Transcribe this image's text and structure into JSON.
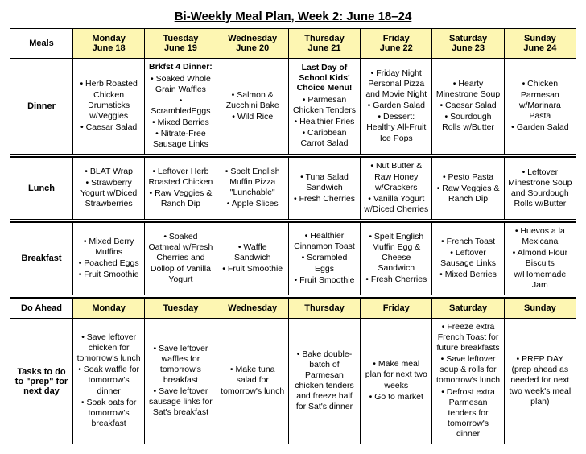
{
  "title": "Bi-Weekly Meal Plan, Week 2: June 18–24",
  "colors": {
    "header_bg": "#fdf6b2",
    "border": "#000000",
    "text": "#000000"
  },
  "columns": {
    "meals_label": "Meals",
    "doahead_label": "Do Ahead",
    "tasks_label": "Tasks to do to \"prep\" for next day",
    "days": [
      {
        "name": "Monday",
        "date": "June 18"
      },
      {
        "name": "Tuesday",
        "date": "June 19"
      },
      {
        "name": "Wednesday",
        "date": "June 20"
      },
      {
        "name": "Thursday",
        "date": "June 21"
      },
      {
        "name": "Friday",
        "date": "June 22"
      },
      {
        "name": "Saturday",
        "date": "June 23"
      },
      {
        "name": "Sunday",
        "date": "June 24"
      }
    ]
  },
  "rows": {
    "dinner": {
      "label": "Dinner",
      "cells": [
        {
          "items": [
            "Herb Roasted Chicken Drumsticks w/Veggies",
            "Caesar Salad"
          ]
        },
        {
          "title": "Brkfst 4 Dinner:",
          "items": [
            "Soaked Whole Grain Waffles",
            "ScrambledEggs",
            "Mixed Berries",
            "Nitrate-Free Sausage Links"
          ]
        },
        {
          "items": [
            "Salmon & Zucchini Bake",
            "Wild Rice"
          ]
        },
        {
          "title": "Last Day of School Kids' Choice Menu!",
          "items": [
            "Parmesan Chicken Tenders",
            "Healthier Fries",
            "Caribbean Carrot Salad"
          ]
        },
        {
          "items": [
            "Friday Night Personal Pizza and Movie Night",
            "Garden Salad",
            "Dessert: Healthy All-Fruit Ice Pops"
          ]
        },
        {
          "items": [
            "Hearty Minestrone Soup",
            "Caesar Salad",
            "Sourdough Rolls w/Butter"
          ]
        },
        {
          "items": [
            "Chicken Parmesan w/Marinara Pasta",
            "Garden Salad"
          ]
        }
      ]
    },
    "lunch": {
      "label": "Lunch",
      "cells": [
        {
          "items": [
            "BLAT Wrap",
            "Strawberry Yogurt w/Diced Strawberries"
          ]
        },
        {
          "items": [
            "Leftover Herb Roasted Chicken",
            "Raw Veggies & Ranch Dip"
          ]
        },
        {
          "items": [
            "Spelt English Muffin Pizza \"Lunchable\"",
            "Apple Slices"
          ]
        },
        {
          "items": [
            "Tuna Salad Sandwich",
            "Fresh Cherries"
          ]
        },
        {
          "items": [
            "Nut Butter & Raw Honey w/Crackers",
            "Vanilla Yogurt w/Diced Cherries"
          ]
        },
        {
          "items": [
            "Pesto Pasta",
            "Raw Veggies & Ranch Dip"
          ]
        },
        {
          "items": [
            "Leftover Minestrone Soup and Sourdough Rolls w/Butter"
          ]
        }
      ]
    },
    "breakfast": {
      "label": "Breakfast",
      "cells": [
        {
          "items": [
            "Mixed Berry Muffins",
            "Poached Eggs",
            "Fruit Smoothie"
          ]
        },
        {
          "items": [
            "Soaked Oatmeal w/Fresh Cherries  and Dollop of Vanilla Yogurt"
          ]
        },
        {
          "items": [
            "Waffle Sandwich",
            "Fruit Smoothie"
          ]
        },
        {
          "items": [
            "Healthier Cinnamon Toast",
            "Scrambled Eggs",
            "Fruit Smoothie"
          ]
        },
        {
          "items": [
            "Spelt English Muffin Egg & Cheese Sandwich",
            "Fresh Cherries"
          ]
        },
        {
          "items": [
            "French Toast",
            "Leftover Sausage Links",
            "Mixed Berries"
          ]
        },
        {
          "items": [
            "Huevos a la Mexicana",
            "Almond Flour Biscuits w/Homemade Jam"
          ]
        }
      ]
    },
    "tasks": {
      "cells": [
        {
          "items": [
            "Save leftover chicken for tomorrow's lunch",
            "Soak waffle for tomorrow's dinner",
            "Soak oats for tomorrow's breakfast"
          ]
        },
        {
          "items": [
            "Save leftover waffles for tomorrow's breakfast",
            "Save leftover sausage links for Sat's breakfast"
          ]
        },
        {
          "items": [
            "Make tuna salad for tomorrow's lunch"
          ]
        },
        {
          "items": [
            "Bake double-batch of Parmesan chicken tenders and freeze half for Sat's dinner"
          ]
        },
        {
          "items": [
            "Make meal plan for next two weeks",
            "Go to market"
          ]
        },
        {
          "items": [
            "Freeze extra French Toast for future breakfasts",
            "Save leftover soup & rolls for tomorrow's lunch",
            "Defrost extra Parmesan tenders for tomorrow's dinner"
          ]
        },
        {
          "items": [
            "PREP DAY (prep ahead as needed for next two week's meal plan)"
          ]
        }
      ]
    }
  }
}
